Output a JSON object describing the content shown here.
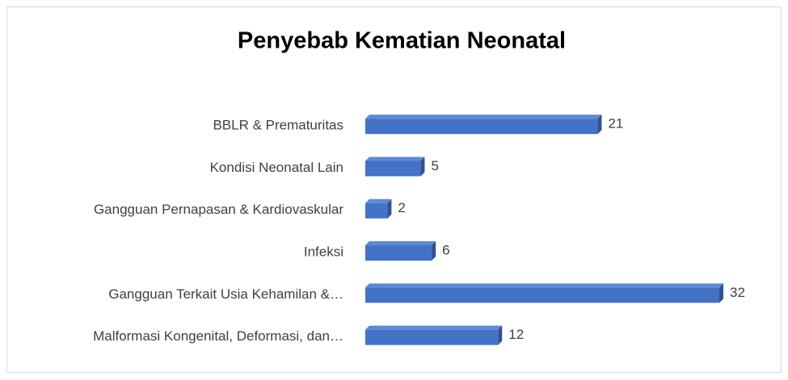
{
  "chart_data": {
    "type": "bar",
    "orientation": "horizontal",
    "title": "Penyebab Kematian Neonatal",
    "categories": [
      "BBLR & Prematuritas",
      "Kondisi Neonatal Lain",
      "Gangguan Pernapasan & Kardiovaskular",
      "Infeksi",
      "Gangguan Terkait Usia Kehamilan &…",
      "Malformasi Kongenital, Deformasi, dan…"
    ],
    "values": [
      21,
      5,
      2,
      6,
      32,
      12
    ],
    "color": "#4472c4"
  }
}
